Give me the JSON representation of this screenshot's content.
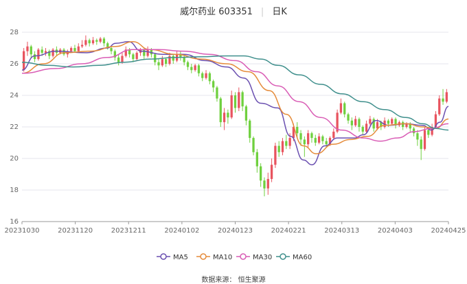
{
  "header": {
    "name": "威尔药业 603351",
    "period": "日K"
  },
  "footer": {
    "source": "数据来源：  恒生聚源"
  },
  "chart_data": {
    "type": "candlestick",
    "ylim": [
      16,
      28
    ],
    "yticks": [
      16,
      18,
      20,
      22,
      24,
      26,
      28
    ],
    "xtick_labels": [
      "20231030",
      "20231120",
      "20231211",
      "20240102",
      "20240123",
      "20240221",
      "20240313",
      "20240403",
      "20240425"
    ],
    "grid": true,
    "legend_position": "bottom",
    "colors": {
      "up": "#e8545f",
      "down": "#6fd03e",
      "ma5": "#6a4fb0",
      "ma10": "#e58b3a",
      "ma30": "#d95cb5",
      "ma60": "#3f8f8c"
    },
    "candles": [
      {
        "o": 25.6,
        "c": 26.8,
        "h": 27.0,
        "l": 25.5
      },
      {
        "o": 26.8,
        "c": 27.1,
        "h": 27.4,
        "l": 26.5
      },
      {
        "o": 27.1,
        "c": 26.6,
        "h": 27.2,
        "l": 26.4
      },
      {
        "o": 26.6,
        "c": 26.3,
        "h": 26.8,
        "l": 26.1
      },
      {
        "o": 26.3,
        "c": 26.9,
        "h": 27.0,
        "l": 26.2
      },
      {
        "o": 26.9,
        "c": 26.7,
        "h": 27.1,
        "l": 26.5
      },
      {
        "o": 26.7,
        "c": 26.8,
        "h": 27.0,
        "l": 26.5
      },
      {
        "o": 26.8,
        "c": 26.5,
        "h": 26.9,
        "l": 26.3
      },
      {
        "o": 26.5,
        "c": 26.9,
        "h": 27.0,
        "l": 26.4
      },
      {
        "o": 26.9,
        "c": 26.7,
        "h": 27.1,
        "l": 26.5
      },
      {
        "o": 26.7,
        "c": 26.9,
        "h": 27.0,
        "l": 26.6
      },
      {
        "o": 26.9,
        "c": 26.6,
        "h": 27.0,
        "l": 26.5
      },
      {
        "o": 26.6,
        "c": 26.8,
        "h": 26.9,
        "l": 26.4
      },
      {
        "o": 26.8,
        "c": 27.0,
        "h": 27.1,
        "l": 26.7
      },
      {
        "o": 27.0,
        "c": 26.8,
        "h": 27.2,
        "l": 26.7
      },
      {
        "o": 26.8,
        "c": 27.1,
        "h": 27.3,
        "l": 26.7
      },
      {
        "o": 27.1,
        "c": 27.2,
        "h": 27.5,
        "l": 27.0
      },
      {
        "o": 27.2,
        "c": 27.5,
        "h": 27.8,
        "l": 27.1
      },
      {
        "o": 27.5,
        "c": 27.3,
        "h": 27.6,
        "l": 27.1
      },
      {
        "o": 27.3,
        "c": 27.5,
        "h": 27.7,
        "l": 27.2
      },
      {
        "o": 27.5,
        "c": 27.4,
        "h": 27.6,
        "l": 27.2
      },
      {
        "o": 27.4,
        "c": 27.6,
        "h": 27.7,
        "l": 27.3
      },
      {
        "o": 27.6,
        "c": 27.3,
        "h": 27.7,
        "l": 27.1
      },
      {
        "o": 27.3,
        "c": 27.0,
        "h": 27.4,
        "l": 26.9
      },
      {
        "o": 27.0,
        "c": 26.8,
        "h": 27.1,
        "l": 26.6
      },
      {
        "o": 26.8,
        "c": 26.4,
        "h": 26.9,
        "l": 26.2
      },
      {
        "o": 26.4,
        "c": 26.1,
        "h": 26.6,
        "l": 25.9
      },
      {
        "o": 26.1,
        "c": 26.5,
        "h": 26.7,
        "l": 26.0
      },
      {
        "o": 26.5,
        "c": 26.9,
        "h": 27.1,
        "l": 26.4
      },
      {
        "o": 26.9,
        "c": 26.6,
        "h": 27.0,
        "l": 26.4
      },
      {
        "o": 26.6,
        "c": 26.3,
        "h": 26.7,
        "l": 26.1
      },
      {
        "o": 26.3,
        "c": 26.7,
        "h": 26.8,
        "l": 26.2
      },
      {
        "o": 26.7,
        "c": 26.9,
        "h": 27.0,
        "l": 26.5
      },
      {
        "o": 26.9,
        "c": 26.5,
        "h": 27.0,
        "l": 26.3
      },
      {
        "o": 26.5,
        "c": 26.9,
        "h": 27.1,
        "l": 26.4
      },
      {
        "o": 26.9,
        "c": 26.6,
        "h": 27.0,
        "l": 26.4
      },
      {
        "o": 26.6,
        "c": 26.1,
        "h": 26.7,
        "l": 25.9
      },
      {
        "o": 26.1,
        "c": 25.9,
        "h": 26.3,
        "l": 25.6
      },
      {
        "o": 25.9,
        "c": 26.3,
        "h": 26.5,
        "l": 25.8
      },
      {
        "o": 26.3,
        "c": 26.0,
        "h": 26.4,
        "l": 25.8
      },
      {
        "o": 26.0,
        "c": 26.5,
        "h": 26.7,
        "l": 25.9
      },
      {
        "o": 26.5,
        "c": 26.2,
        "h": 26.6,
        "l": 26.0
      },
      {
        "o": 26.2,
        "c": 26.6,
        "h": 26.8,
        "l": 26.1
      },
      {
        "o": 26.6,
        "c": 26.4,
        "h": 26.8,
        "l": 26.2
      },
      {
        "o": 26.4,
        "c": 26.1,
        "h": 26.5,
        "l": 25.9
      },
      {
        "o": 26.1,
        "c": 25.8,
        "h": 26.2,
        "l": 25.6
      },
      {
        "o": 25.8,
        "c": 25.6,
        "h": 26.0,
        "l": 25.4
      },
      {
        "o": 25.6,
        "c": 25.9,
        "h": 26.0,
        "l": 25.5
      },
      {
        "o": 25.9,
        "c": 25.4,
        "h": 26.0,
        "l": 25.2
      },
      {
        "o": 25.4,
        "c": 25.1,
        "h": 25.5,
        "l": 24.9
      },
      {
        "o": 25.1,
        "c": 25.4,
        "h": 25.6,
        "l": 25.0
      },
      {
        "o": 25.4,
        "c": 24.9,
        "h": 25.5,
        "l": 24.7
      },
      {
        "o": 24.9,
        "c": 24.5,
        "h": 25.0,
        "l": 24.2
      },
      {
        "o": 24.5,
        "c": 23.8,
        "h": 24.6,
        "l": 23.6
      },
      {
        "o": 23.8,
        "c": 22.3,
        "h": 23.9,
        "l": 22.0
      },
      {
        "o": 22.3,
        "c": 22.9,
        "h": 23.2,
        "l": 21.8
      },
      {
        "o": 22.9,
        "c": 22.6,
        "h": 23.1,
        "l": 22.2
      },
      {
        "o": 22.6,
        "c": 24.0,
        "h": 24.3,
        "l": 22.5
      },
      {
        "o": 24.0,
        "c": 23.2,
        "h": 24.2,
        "l": 22.9
      },
      {
        "o": 23.2,
        "c": 24.2,
        "h": 24.5,
        "l": 23.0
      },
      {
        "o": 24.2,
        "c": 23.3,
        "h": 24.3,
        "l": 23.0
      },
      {
        "o": 23.3,
        "c": 22.4,
        "h": 23.4,
        "l": 22.1
      },
      {
        "o": 22.4,
        "c": 21.3,
        "h": 22.5,
        "l": 21.0
      },
      {
        "o": 21.3,
        "c": 20.4,
        "h": 21.4,
        "l": 20.2
      },
      {
        "o": 20.4,
        "c": 19.5,
        "h": 20.6,
        "l": 19.1
      },
      {
        "o": 19.5,
        "c": 18.6,
        "h": 19.7,
        "l": 18.2
      },
      {
        "o": 18.6,
        "c": 18.1,
        "h": 18.8,
        "l": 17.6
      },
      {
        "o": 18.1,
        "c": 18.7,
        "h": 19.1,
        "l": 17.7
      },
      {
        "o": 18.7,
        "c": 19.6,
        "h": 20.0,
        "l": 18.5
      },
      {
        "o": 19.6,
        "c": 20.8,
        "h": 21.0,
        "l": 19.4
      },
      {
        "o": 20.8,
        "c": 20.4,
        "h": 21.1,
        "l": 20.1
      },
      {
        "o": 20.4,
        "c": 21.1,
        "h": 21.3,
        "l": 20.2
      },
      {
        "o": 21.1,
        "c": 20.8,
        "h": 21.5,
        "l": 20.6
      },
      {
        "o": 20.8,
        "c": 21.3,
        "h": 21.6,
        "l": 20.6
      },
      {
        "o": 21.3,
        "c": 22.0,
        "h": 22.2,
        "l": 21.1
      },
      {
        "o": 22.0,
        "c": 21.6,
        "h": 22.3,
        "l": 21.3
      },
      {
        "o": 21.6,
        "c": 21.2,
        "h": 21.8,
        "l": 20.8
      },
      {
        "o": 21.2,
        "c": 20.9,
        "h": 21.4,
        "l": 20.1
      },
      {
        "o": 20.9,
        "c": 21.6,
        "h": 21.8,
        "l": 20.7
      },
      {
        "o": 21.6,
        "c": 21.3,
        "h": 21.7,
        "l": 21.0
      },
      {
        "o": 21.3,
        "c": 21.0,
        "h": 21.5,
        "l": 20.8
      },
      {
        "o": 21.0,
        "c": 21.4,
        "h": 21.6,
        "l": 20.9
      },
      {
        "o": 21.4,
        "c": 21.1,
        "h": 21.5,
        "l": 20.9
      },
      {
        "o": 21.1,
        "c": 20.9,
        "h": 21.3,
        "l": 20.7
      },
      {
        "o": 20.9,
        "c": 21.3,
        "h": 21.4,
        "l": 20.8
      },
      {
        "o": 21.3,
        "c": 21.7,
        "h": 21.9,
        "l": 21.2
      },
      {
        "o": 21.7,
        "c": 22.9,
        "h": 23.1,
        "l": 21.6
      },
      {
        "o": 22.9,
        "c": 23.5,
        "h": 23.8,
        "l": 22.8
      },
      {
        "o": 23.5,
        "c": 22.8,
        "h": 23.6,
        "l": 22.6
      },
      {
        "o": 22.8,
        "c": 22.4,
        "h": 22.9,
        "l": 22.2
      },
      {
        "o": 22.4,
        "c": 22.1,
        "h": 22.6,
        "l": 21.8
      },
      {
        "o": 22.1,
        "c": 22.5,
        "h": 22.7,
        "l": 22.0
      },
      {
        "o": 22.5,
        "c": 22.0,
        "h": 22.6,
        "l": 21.7
      },
      {
        "o": 22.0,
        "c": 21.7,
        "h": 22.1,
        "l": 21.5
      },
      {
        "o": 21.7,
        "c": 22.2,
        "h": 22.4,
        "l": 21.6
      },
      {
        "o": 22.2,
        "c": 22.5,
        "h": 22.7,
        "l": 22.1
      },
      {
        "o": 22.5,
        "c": 21.9,
        "h": 22.6,
        "l": 21.7
      },
      {
        "o": 21.9,
        "c": 22.3,
        "h": 22.5,
        "l": 21.8
      },
      {
        "o": 22.3,
        "c": 22.0,
        "h": 22.4,
        "l": 21.8
      },
      {
        "o": 22.0,
        "c": 22.4,
        "h": 22.6,
        "l": 21.9
      },
      {
        "o": 22.4,
        "c": 22.2,
        "h": 22.5,
        "l": 22.0
      },
      {
        "o": 22.2,
        "c": 22.5,
        "h": 22.6,
        "l": 22.1
      },
      {
        "o": 22.5,
        "c": 22.1,
        "h": 22.6,
        "l": 21.9
      },
      {
        "o": 22.1,
        "c": 22.3,
        "h": 22.4,
        "l": 22.0
      },
      {
        "o": 22.3,
        "c": 22.0,
        "h": 22.4,
        "l": 21.8
      },
      {
        "o": 22.0,
        "c": 22.2,
        "h": 22.3,
        "l": 21.9
      },
      {
        "o": 22.2,
        "c": 21.9,
        "h": 22.3,
        "l": 21.7
      },
      {
        "o": 21.9,
        "c": 21.6,
        "h": 22.0,
        "l": 21.4
      },
      {
        "o": 21.6,
        "c": 21.2,
        "h": 21.8,
        "l": 20.8
      },
      {
        "o": 21.2,
        "c": 20.6,
        "h": 21.4,
        "l": 19.9
      },
      {
        "o": 20.6,
        "c": 21.8,
        "h": 22.0,
        "l": 20.5
      },
      {
        "o": 21.8,
        "c": 21.5,
        "h": 22.0,
        "l": 21.3
      },
      {
        "o": 21.5,
        "c": 22.0,
        "h": 22.2,
        "l": 21.4
      },
      {
        "o": 22.0,
        "c": 22.8,
        "h": 23.0,
        "l": 21.9
      },
      {
        "o": 22.8,
        "c": 23.8,
        "h": 24.0,
        "l": 22.7
      },
      {
        "o": 23.8,
        "c": 23.6,
        "h": 24.4,
        "l": 23.4
      },
      {
        "o": 23.6,
        "c": 24.2,
        "h": 24.4,
        "l": 23.5
      }
    ],
    "series": [
      {
        "name": "MA5",
        "color": "#6a4fb0",
        "values": [
          [
            0,
            25.6
          ],
          [
            0.03,
            26.5
          ],
          [
            0.08,
            26.8
          ],
          [
            0.15,
            26.7
          ],
          [
            0.2,
            27.0
          ],
          [
            0.22,
            27.3
          ],
          [
            0.25,
            27.4
          ],
          [
            0.28,
            26.8
          ],
          [
            0.33,
            26.6
          ],
          [
            0.38,
            26.6
          ],
          [
            0.43,
            26.2
          ],
          [
            0.48,
            25.8
          ],
          [
            0.52,
            25.1
          ],
          [
            0.56,
            23.5
          ],
          [
            0.6,
            23.2
          ],
          [
            0.63,
            21.4
          ],
          [
            0.66,
            19.9
          ],
          [
            0.68,
            19.6
          ],
          [
            0.71,
            20.8
          ],
          [
            0.74,
            21.3
          ],
          [
            0.78,
            21.3
          ],
          [
            0.8,
            21.5
          ],
          [
            0.83,
            22.4
          ],
          [
            0.86,
            22.1
          ],
          [
            0.9,
            22.2
          ],
          [
            0.94,
            22.1
          ],
          [
            0.96,
            21.8
          ],
          [
            0.98,
            22.3
          ],
          [
            1.0,
            23.3
          ]
        ]
      },
      {
        "name": "MA10",
        "color": "#e58b3a",
        "values": [
          [
            0,
            25.4
          ],
          [
            0.05,
            26.0
          ],
          [
            0.1,
            26.7
          ],
          [
            0.16,
            26.8
          ],
          [
            0.22,
            27.1
          ],
          [
            0.26,
            27.4
          ],
          [
            0.3,
            26.9
          ],
          [
            0.36,
            26.6
          ],
          [
            0.42,
            26.3
          ],
          [
            0.48,
            26.0
          ],
          [
            0.53,
            25.5
          ],
          [
            0.58,
            24.3
          ],
          [
            0.62,
            22.8
          ],
          [
            0.66,
            20.8
          ],
          [
            0.69,
            20.3
          ],
          [
            0.73,
            20.9
          ],
          [
            0.77,
            21.2
          ],
          [
            0.81,
            21.4
          ],
          [
            0.85,
            22.1
          ],
          [
            0.9,
            22.2
          ],
          [
            0.94,
            22.0
          ],
          [
            0.97,
            21.9
          ],
          [
            1.0,
            22.5
          ]
        ]
      },
      {
        "name": "MA30",
        "color": "#d95cb5",
        "values": [
          [
            0,
            25.4
          ],
          [
            0.08,
            25.7
          ],
          [
            0.14,
            26.0
          ],
          [
            0.2,
            26.4
          ],
          [
            0.26,
            26.9
          ],
          [
            0.32,
            26.9
          ],
          [
            0.38,
            26.8
          ],
          [
            0.44,
            26.6
          ],
          [
            0.5,
            26.2
          ],
          [
            0.55,
            25.5
          ],
          [
            0.6,
            24.6
          ],
          [
            0.65,
            23.6
          ],
          [
            0.7,
            22.6
          ],
          [
            0.75,
            21.8
          ],
          [
            0.8,
            21.3
          ],
          [
            0.84,
            21.1
          ],
          [
            0.88,
            21.3
          ],
          [
            0.92,
            21.7
          ],
          [
            0.96,
            21.9
          ],
          [
            1.0,
            22.2
          ]
        ]
      },
      {
        "name": "MA60",
        "color": "#3f8f8c",
        "values": [
          [
            0,
            26.1
          ],
          [
            0.06,
            25.9
          ],
          [
            0.12,
            25.8
          ],
          [
            0.18,
            25.9
          ],
          [
            0.24,
            26.1
          ],
          [
            0.3,
            26.3
          ],
          [
            0.36,
            26.4
          ],
          [
            0.42,
            26.45
          ],
          [
            0.48,
            26.5
          ],
          [
            0.52,
            26.5
          ],
          [
            0.56,
            26.3
          ],
          [
            0.6,
            25.9
          ],
          [
            0.65,
            25.3
          ],
          [
            0.7,
            24.7
          ],
          [
            0.75,
            24.1
          ],
          [
            0.8,
            23.6
          ],
          [
            0.85,
            23.1
          ],
          [
            0.9,
            22.6
          ],
          [
            0.94,
            22.2
          ],
          [
            0.97,
            21.9
          ],
          [
            1.0,
            21.8
          ]
        ]
      }
    ]
  }
}
